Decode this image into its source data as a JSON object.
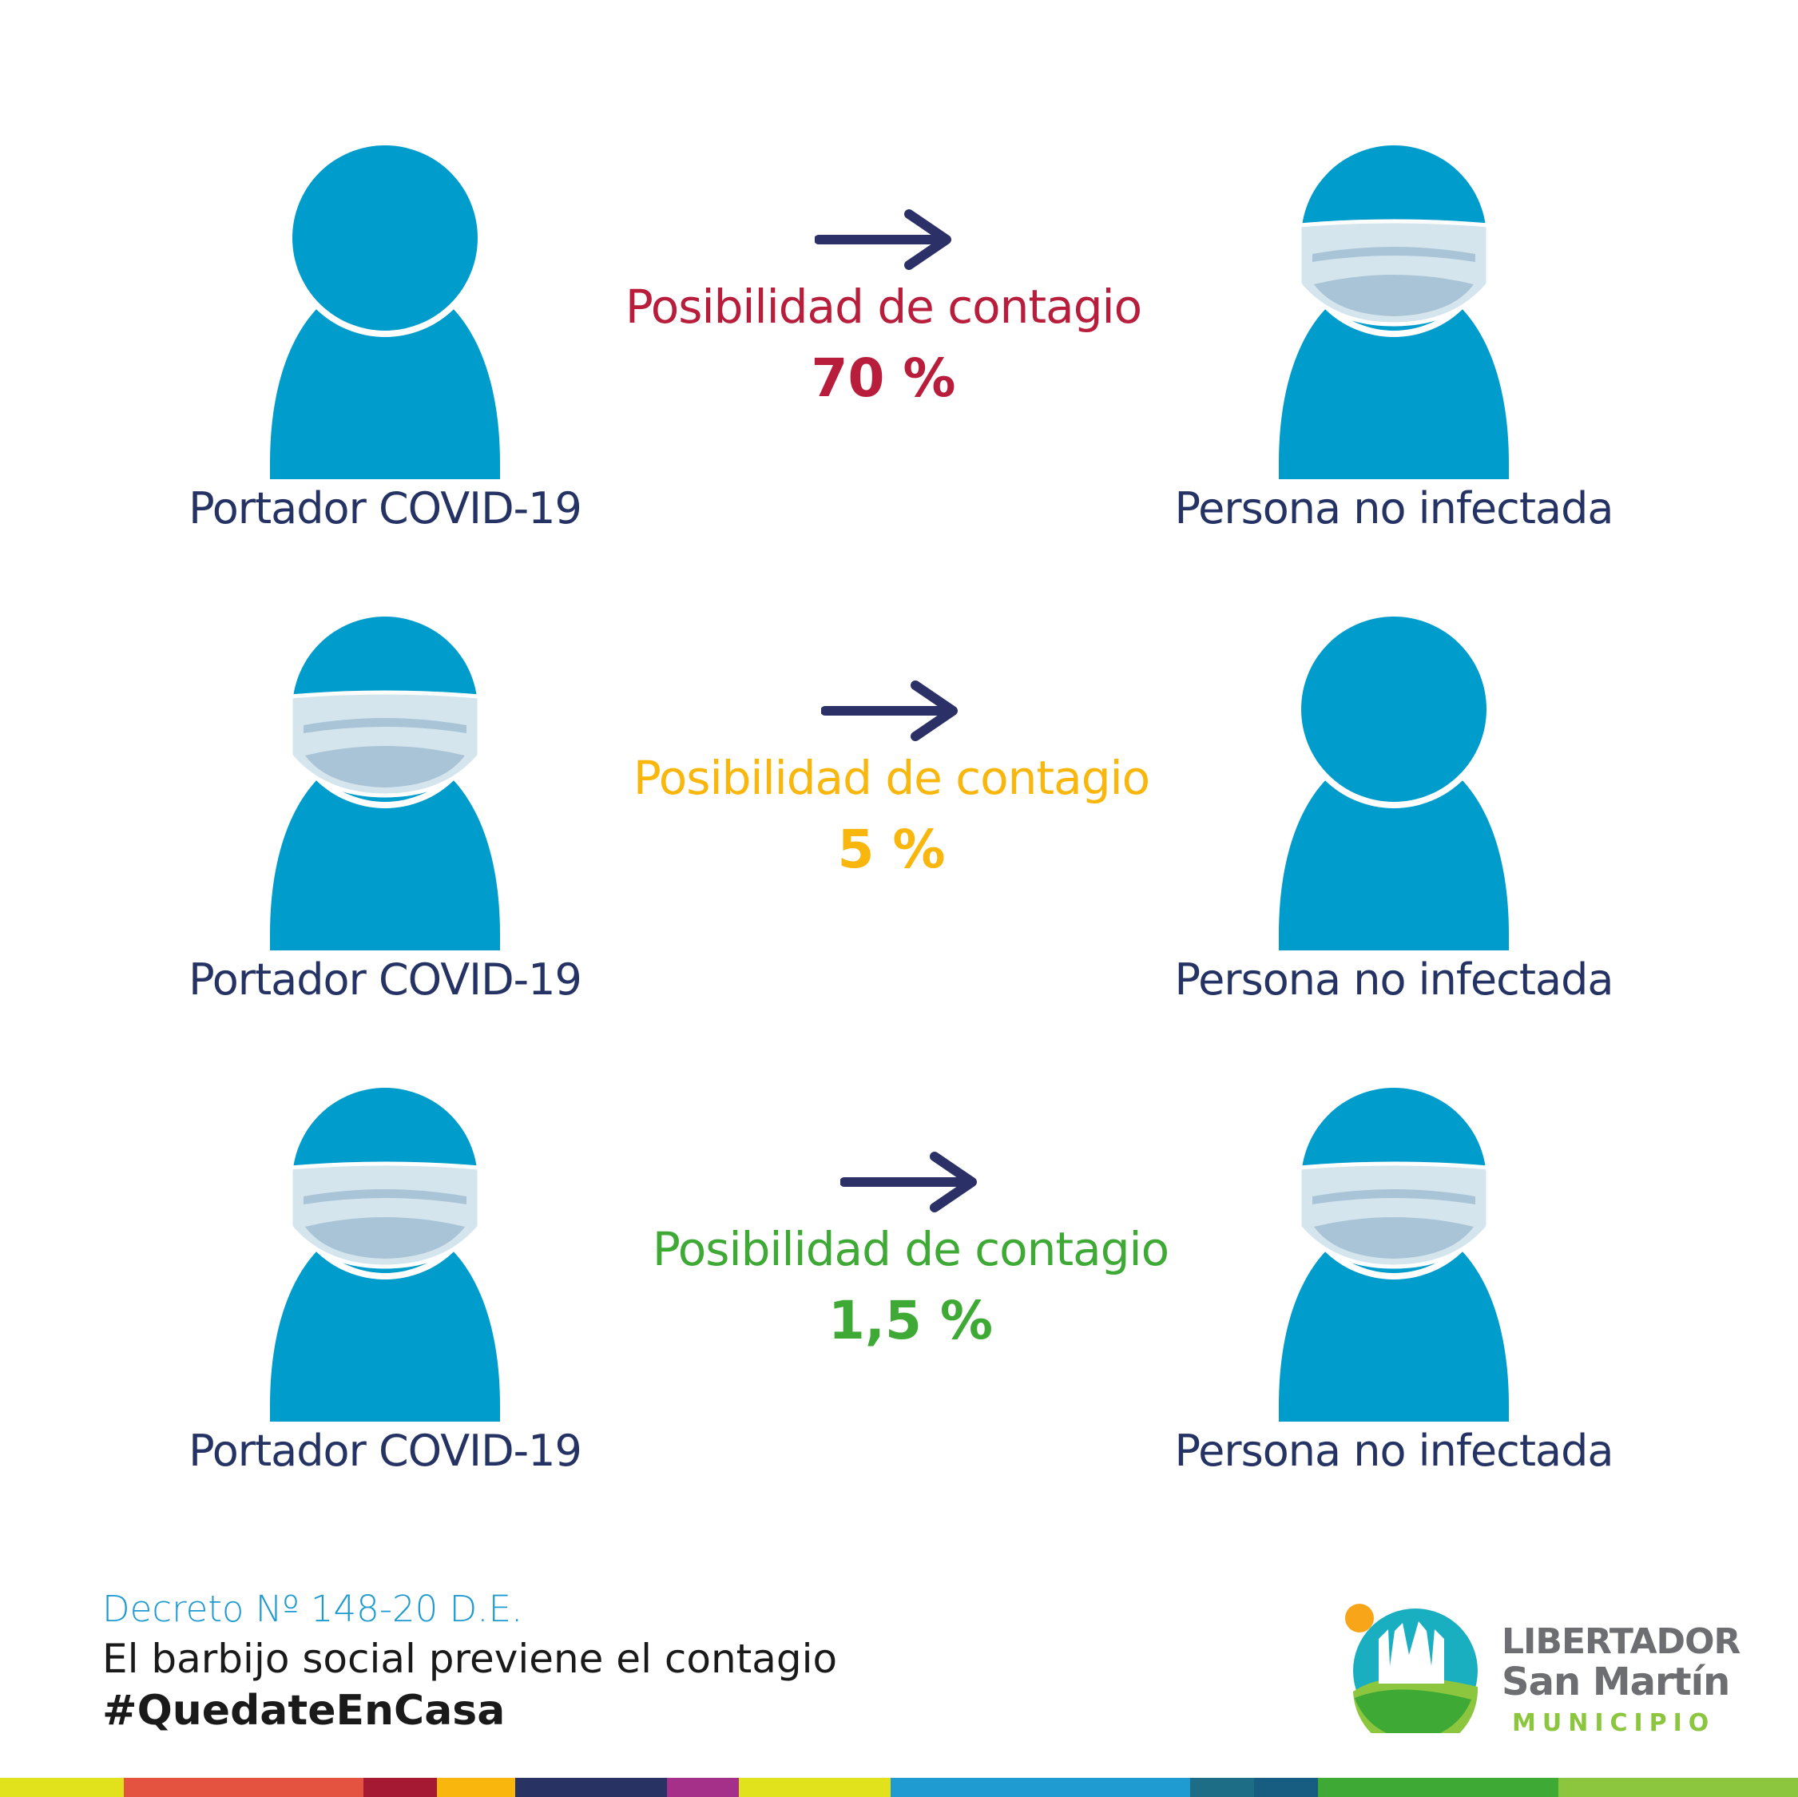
{
  "colors": {
    "person_blue": "#009ccc",
    "label_navy": "#253364",
    "arrow_navy": "#2b3166",
    "high_red": "#b81e3b",
    "medium_yellow": "#f9b60d",
    "low_green": "#3eaa35",
    "mask_fill": "#d5e5ee",
    "mask_fold": "#a9c4d6"
  },
  "rows": [
    {
      "left_label": "Portador COVID-19",
      "right_label": "Persona no infectada",
      "left_masked": false,
      "right_masked": true,
      "chance_label": "Posibilidad de contagio",
      "percent": "70 %",
      "color": "#b81e3b"
    },
    {
      "left_label": "Portador COVID-19",
      "right_label": "Persona no infectada",
      "left_masked": true,
      "right_masked": false,
      "chance_label": "Posibilidad de contagio",
      "percent": "5 %",
      "color": "#f9b60d"
    },
    {
      "left_label": "Portador COVID-19",
      "right_label": "Persona no infectada",
      "left_masked": true,
      "right_masked": true,
      "chance_label": "Posibilidad de contagio",
      "percent": "1,5 %",
      "color": "#3eaa35"
    }
  ],
  "icons": {
    "person": "person-icon",
    "mask": "face-mask-icon",
    "arrow": "arrow-right-icon",
    "logo": "municipality-logo-icon"
  },
  "footer": {
    "decree": "Decreto Nº 148-20 D.E.",
    "tagline": "El barbijo social previene el contagio",
    "hashtag": "#QuedateEnCasa"
  },
  "logo": {
    "line1": "LIBERTADOR",
    "line2": "San Martín",
    "line3": "MUNICIPIO"
  },
  "stripe_colors": [
    {
      "color": "#e1e21b",
      "flex": 155
    },
    {
      "color": "#e4533f",
      "flex": 300
    },
    {
      "color": "#a51a32",
      "flex": 92
    },
    {
      "color": "#f9b60d",
      "flex": 98
    },
    {
      "color": "#283364",
      "flex": 190
    },
    {
      "color": "#a5308a",
      "flex": 90
    },
    {
      "color": "#e1e21b",
      "flex": 190
    },
    {
      "color": "#1f9bd1",
      "flex": 375
    },
    {
      "color": "#1c6d85",
      "flex": 80
    },
    {
      "color": "#175d82",
      "flex": 80
    },
    {
      "color": "#3eaa35",
      "flex": 301
    },
    {
      "color": "#8cc63f",
      "flex": 300
    }
  ]
}
